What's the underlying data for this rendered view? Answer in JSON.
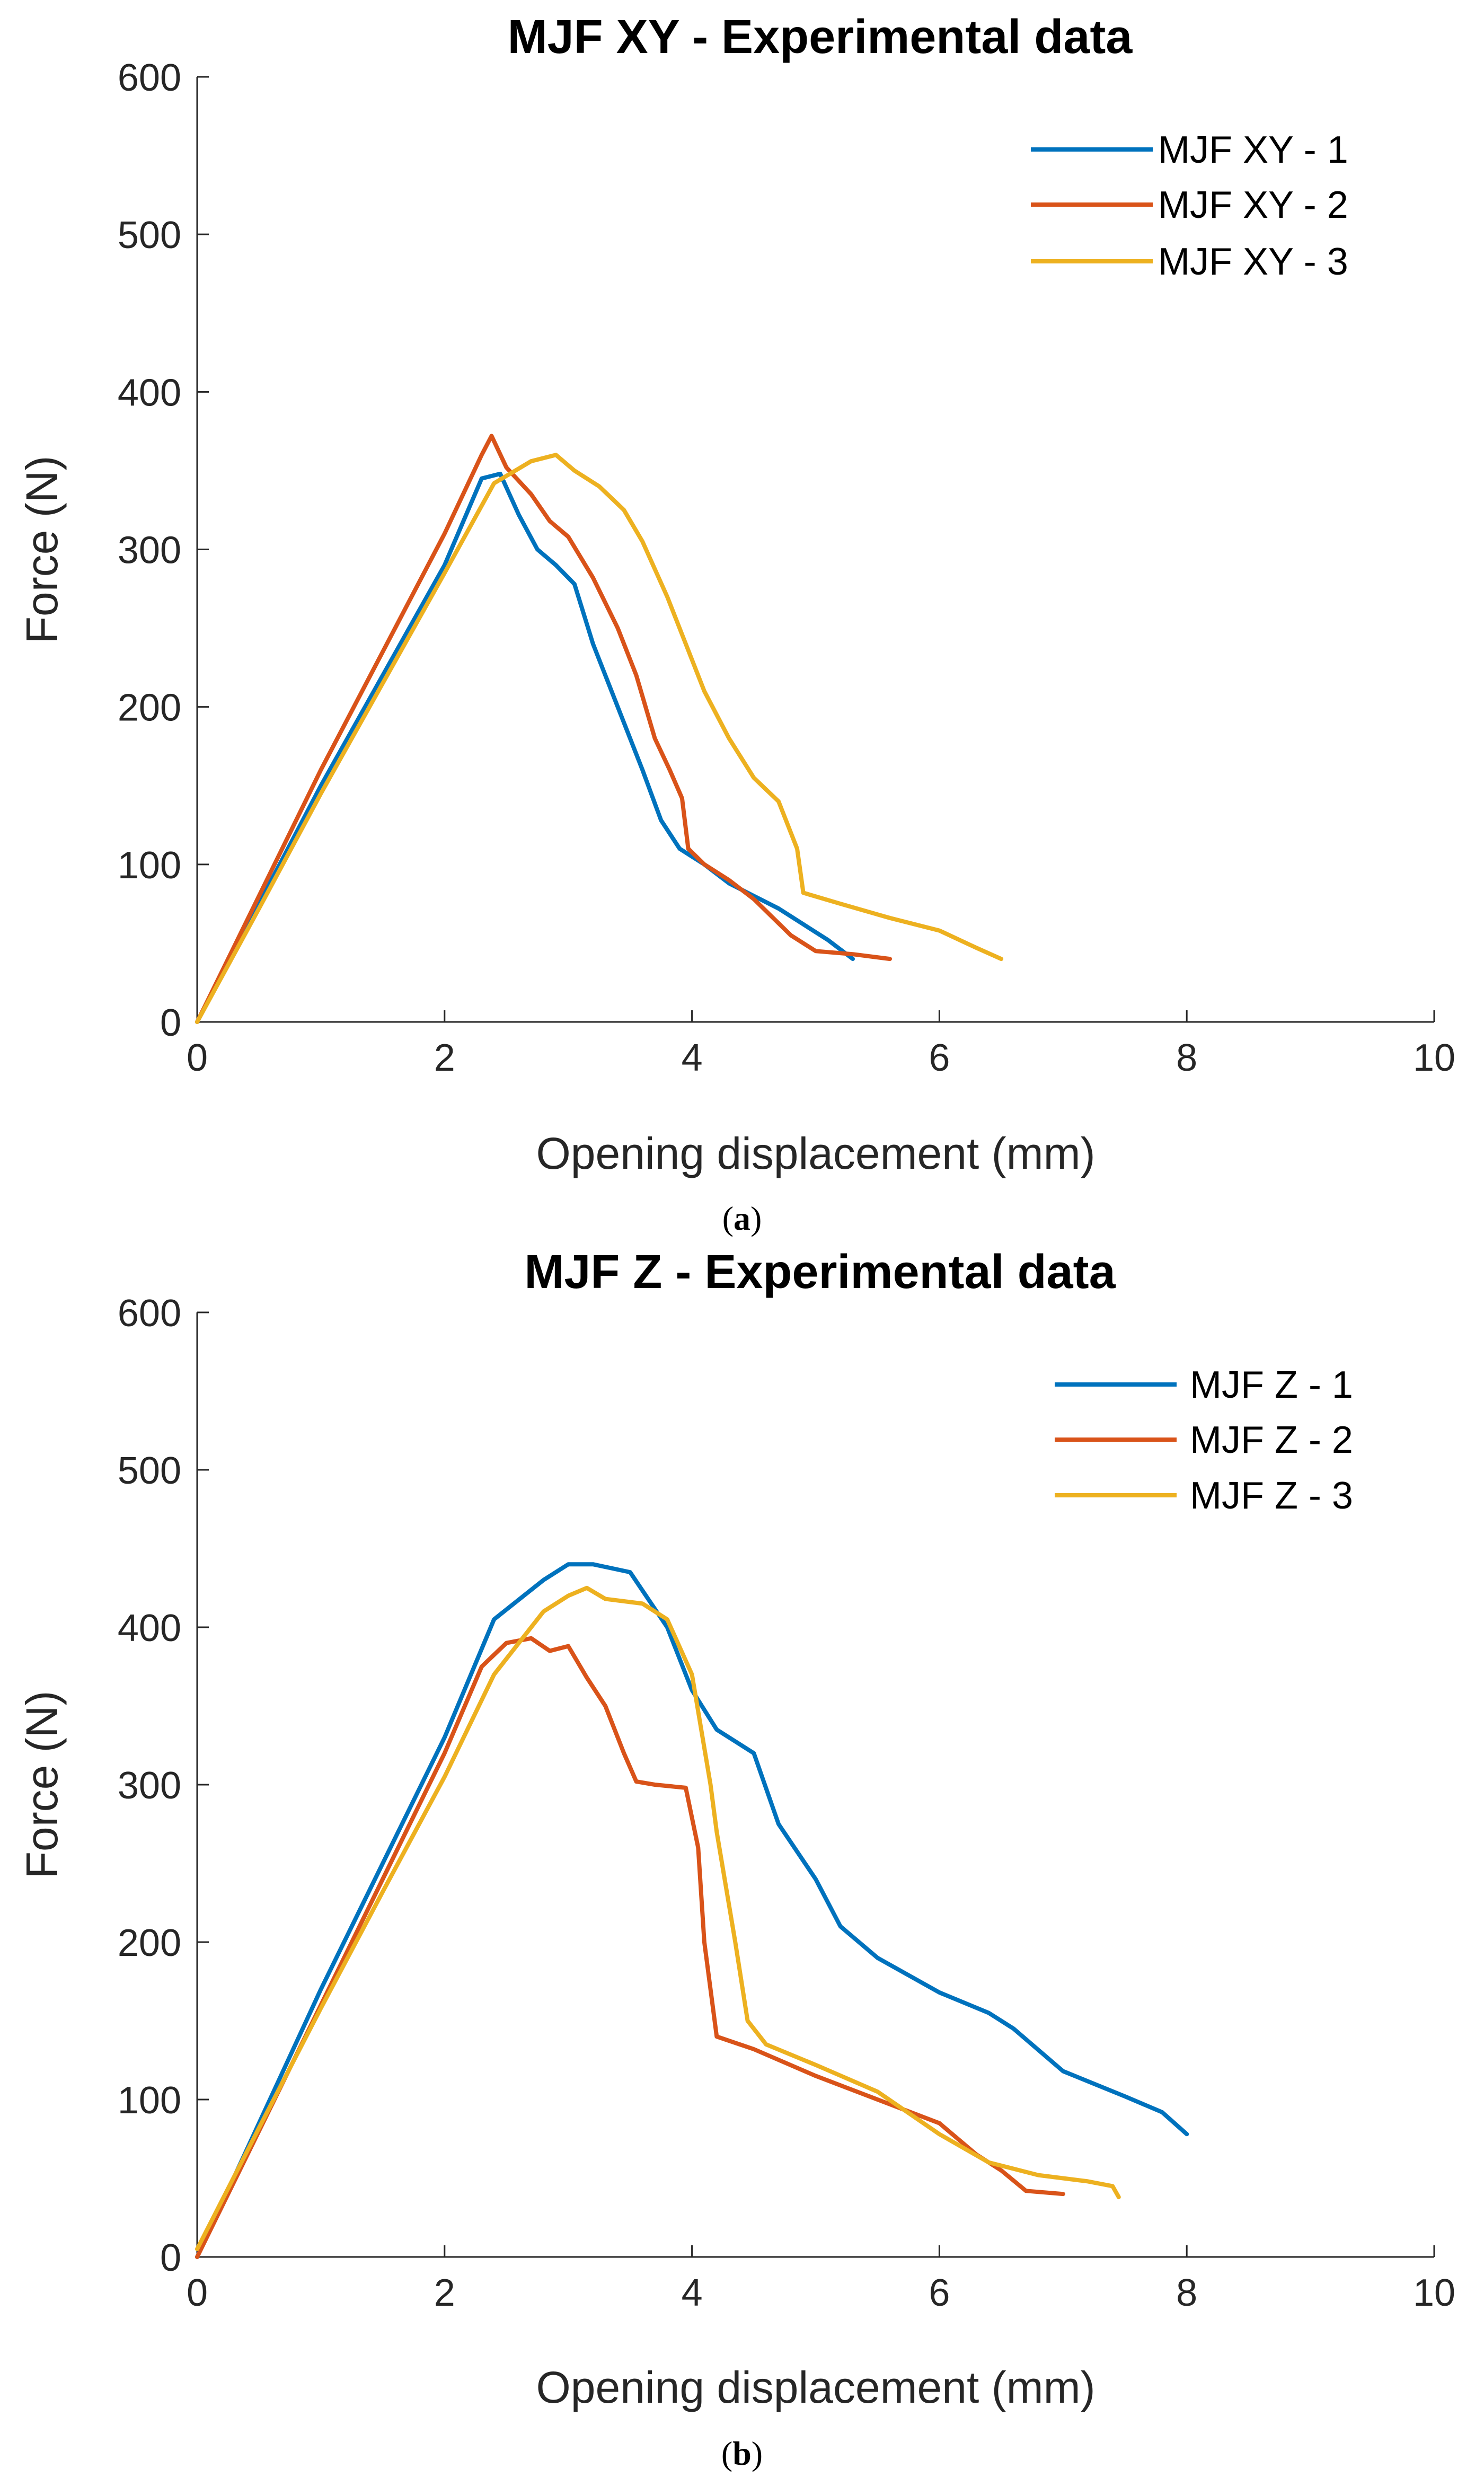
{
  "chart_data": [
    {
      "type": "line",
      "title": "MJF XY - Experimental data",
      "xlabel": "Opening displacement (mm)",
      "ylabel": "Force (N)",
      "xlim": [
        0,
        10
      ],
      "ylim": [
        0,
        600
      ],
      "xticks": [
        "0",
        "2",
        "4",
        "6",
        "8",
        "10"
      ],
      "yticks": [
        "0",
        "100",
        "200",
        "300",
        "400",
        "500",
        "600"
      ],
      "legend_position": "top-right",
      "caption": "a",
      "series": [
        {
          "name": "MJF XY - 1",
          "color": "#0072BD",
          "x": [
            0,
            0.5,
            1.0,
            1.5,
            2.0,
            2.3,
            2.45,
            2.6,
            2.75,
            2.9,
            3.05,
            3.2,
            3.35,
            3.5,
            3.6,
            3.75,
            3.9,
            4.1,
            4.3,
            4.5,
            4.7,
            4.9,
            5.1,
            5.3
          ],
          "y": [
            0,
            75,
            150,
            220,
            290,
            345,
            348,
            322,
            300,
            290,
            278,
            240,
            210,
            180,
            160,
            128,
            110,
            100,
            88,
            80,
            72,
            62,
            52,
            40
          ]
        },
        {
          "name": "MJF XY - 2",
          "color": "#D95319",
          "x": [
            0,
            0.5,
            1.0,
            1.5,
            2.0,
            2.3,
            2.38,
            2.5,
            2.7,
            2.85,
            3.0,
            3.2,
            3.4,
            3.55,
            3.7,
            3.82,
            3.92,
            3.97,
            4.1,
            4.3,
            4.5,
            4.8,
            5.0,
            5.3,
            5.6
          ],
          "y": [
            0,
            80,
            160,
            235,
            310,
            360,
            372,
            352,
            335,
            318,
            308,
            282,
            250,
            220,
            180,
            160,
            142,
            110,
            100,
            90,
            78,
            55,
            45,
            43,
            40
          ]
        },
        {
          "name": "MJF XY - 3",
          "color": "#EDB120",
          "x": [
            0,
            0.5,
            1.0,
            1.5,
            2.0,
            2.4,
            2.7,
            2.9,
            3.05,
            3.25,
            3.45,
            3.6,
            3.8,
            3.95,
            4.1,
            4.3,
            4.5,
            4.7,
            4.85,
            4.9,
            5.2,
            5.6,
            6.0,
            6.3,
            6.5
          ],
          "y": [
            0,
            72,
            145,
            215,
            285,
            342,
            356,
            360,
            350,
            340,
            325,
            305,
            270,
            240,
            210,
            180,
            155,
            140,
            110,
            82,
            75,
            66,
            58,
            47,
            40
          ]
        }
      ]
    },
    {
      "type": "line",
      "title": "MJF Z - Experimental data",
      "xlabel": "Opening displacement (mm)",
      "ylabel": "Force (N)",
      "xlim": [
        0,
        10
      ],
      "ylim": [
        0,
        600
      ],
      "xticks": [
        "0",
        "2",
        "4",
        "6",
        "8",
        "10"
      ],
      "yticks": [
        "0",
        "100",
        "200",
        "300",
        "400",
        "500",
        "600"
      ],
      "legend_position": "top-right",
      "caption": "b",
      "series": [
        {
          "name": "MJF Z - 1",
          "color": "#0072BD",
          "x": [
            0,
            0.5,
            1.0,
            1.5,
            2.0,
            2.4,
            2.8,
            3.0,
            3.2,
            3.5,
            3.8,
            4.0,
            4.2,
            4.5,
            4.7,
            5.0,
            5.2,
            5.5,
            6.0,
            6.4,
            6.6,
            7.0,
            7.5,
            7.8,
            8.0
          ],
          "y": [
            0,
            85,
            170,
            250,
            330,
            405,
            430,
            440,
            440,
            435,
            400,
            360,
            335,
            320,
            275,
            240,
            210,
            190,
            168,
            155,
            145,
            118,
            102,
            92,
            78
          ]
        },
        {
          "name": "MJF Z - 2",
          "color": "#D95319",
          "x": [
            0,
            0.5,
            1.0,
            1.5,
            2.0,
            2.3,
            2.5,
            2.7,
            2.85,
            3.0,
            3.15,
            3.3,
            3.45,
            3.55,
            3.7,
            3.95,
            4.05,
            4.1,
            4.2,
            4.5,
            5.0,
            5.5,
            6.0,
            6.3,
            6.5,
            6.7,
            7.0
          ],
          "y": [
            0,
            80,
            160,
            240,
            320,
            375,
            390,
            393,
            385,
            388,
            368,
            350,
            320,
            302,
            300,
            298,
            260,
            200,
            140,
            132,
            115,
            100,
            85,
            65,
            55,
            42,
            40
          ]
        },
        {
          "name": "MJF Z - 3",
          "color": "#EDB120",
          "x": [
            0,
            0.5,
            1.0,
            1.5,
            2.0,
            2.4,
            2.8,
            3.0,
            3.15,
            3.3,
            3.6,
            3.8,
            4.0,
            4.15,
            4.2,
            4.35,
            4.45,
            4.6,
            5.0,
            5.5,
            6.0,
            6.4,
            6.8,
            7.2,
            7.4,
            7.45
          ],
          "y": [
            5,
            82,
            158,
            232,
            305,
            370,
            410,
            420,
            425,
            418,
            415,
            405,
            370,
            300,
            270,
            200,
            150,
            135,
            122,
            105,
            78,
            60,
            52,
            48,
            45,
            38
          ]
        }
      ]
    }
  ],
  "captions": [
    {
      "open": "(",
      "letter": "a",
      "close": ")"
    },
    {
      "open": "(",
      "letter": "b",
      "close": ")"
    }
  ]
}
